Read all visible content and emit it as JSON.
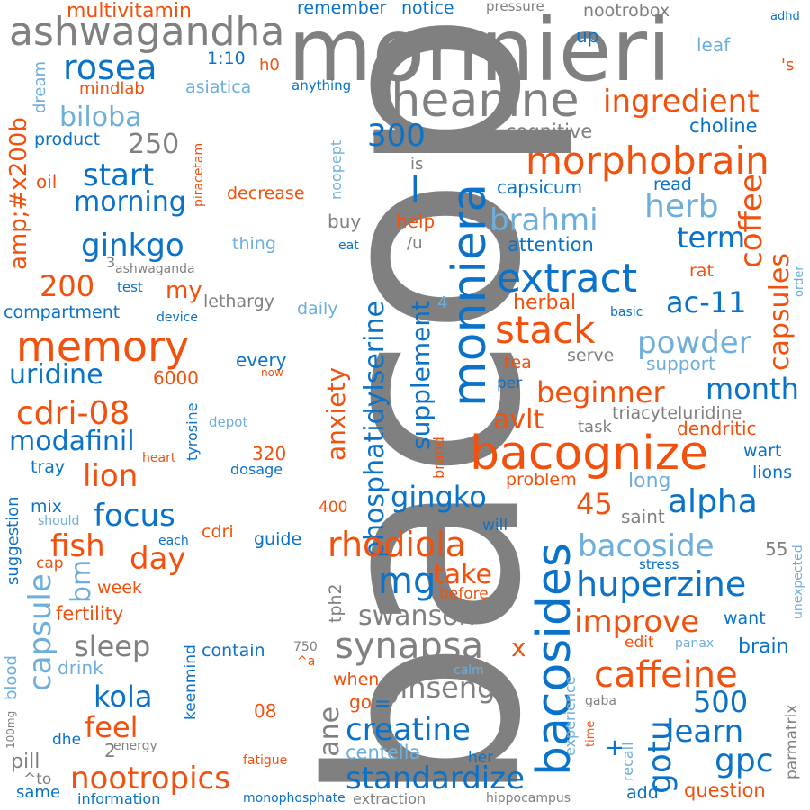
{
  "palette": {
    "gray": "#808080",
    "blue": "#0a72c8",
    "orange": "#f2510d",
    "light_blue": "#6eaedb",
    "background": "#ffffff"
  },
  "words": [
    "bacopa",
    "monnieri",
    "ashwagandha",
    "multivitamin",
    "remember",
    "notice",
    "pressure",
    "nootrobox",
    "adhd",
    "rosea",
    "dream",
    "1:10",
    "h0",
    "leaf",
    "up",
    "'s",
    "mindlab",
    "asiatica",
    "anything",
    "theanine",
    "ingredient",
    "biloba",
    "250",
    "product",
    "choline",
    "cognitive",
    "oil",
    "piracetam",
    "noopept",
    "300",
    "morphobrain",
    "start",
    "morning",
    "amp;#x200b",
    "decrease",
    "is",
    "capsicum",
    "read",
    "herb",
    "coffee",
    "phosphatidylserine",
    "monniera",
    "brahmi",
    "l",
    "buy",
    "help",
    "term",
    "ginkgo",
    "thing",
    "eat",
    "/u",
    "attention",
    "3",
    "ashwaganda",
    "order",
    "200",
    "test",
    "my",
    "extract",
    "capsules",
    "rat",
    "lethargy",
    "compartment",
    "device",
    "daily",
    "4",
    "herbal",
    "ac-11",
    "basic",
    "memory",
    "stack",
    "powder",
    "every",
    "now",
    "supplement",
    "support",
    "uridine",
    "6000",
    "serve",
    "month",
    "tea",
    "per",
    "beginner",
    "anxiety",
    "cdri-08",
    "avlt",
    "triacyteluridine",
    "depot",
    "task",
    "modafinil",
    "320",
    "bacognize",
    "dendritic",
    "tray",
    "heart",
    "dosage",
    "tyrosine",
    "brand",
    "wart",
    "lion",
    "problem",
    "long",
    "lions",
    "mix",
    "focus",
    "gingko",
    "alpha",
    "45",
    "should",
    "saint",
    "400",
    "will",
    "capsule",
    "suggestion",
    "cap",
    "each",
    "cdri",
    "guide",
    "fish",
    "day",
    "rhodiola",
    "bacoside",
    "55",
    "bacosides",
    "bm",
    "stress",
    "mg",
    "take",
    "huperzine",
    "week",
    "tph2",
    "before",
    "fertility",
    "swanson",
    "want",
    "unexpected",
    "improve",
    "sleep",
    "keenmind",
    "x",
    "edit",
    "panax",
    "brain",
    "blood",
    "contain",
    "750",
    "^a",
    "synapsa",
    "calm",
    "drink",
    "caffeine",
    "kola",
    "ginseng",
    "when",
    "experience",
    "500",
    "gaba",
    "parmatrix",
    "feel",
    "go",
    "=",
    "time",
    "learn",
    "100mg",
    "08",
    "creatine",
    "gotu",
    "mane",
    "dhe",
    "energy",
    "2",
    "+",
    "recall",
    "pill",
    "centella",
    "her",
    "gpc",
    "fatigue",
    "nootropics",
    "standardize",
    "^to",
    "same",
    "question",
    "information",
    "monophosphate",
    "extraction",
    "hippocampus",
    "add"
  ]
}
